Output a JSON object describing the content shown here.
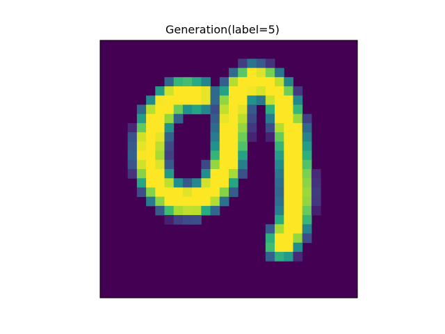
{
  "chart_data": {
    "type": "heatmap",
    "title": "Generation(label=5)",
    "colormap": "viridis",
    "grid": false,
    "axes_visible": false,
    "value_range": [
      0,
      1
    ],
    "rows": 28,
    "cols": 28,
    "strokes": [
      {
        "name": "left-bowl",
        "points": [
          [
            10.7,
            6.0
          ],
          [
            9.0,
            5.8
          ],
          [
            7.6,
            6.6
          ],
          [
            6.2,
            8.3
          ],
          [
            5.5,
            10.5
          ],
          [
            5.4,
            12.8
          ],
          [
            5.7,
            14.6
          ],
          [
            6.7,
            16.2
          ],
          [
            8.3,
            17.4
          ],
          [
            10.2,
            17.5
          ],
          [
            11.7,
            16.8
          ],
          [
            12.9,
            15.4
          ],
          [
            13.7,
            13.6
          ],
          [
            14.2,
            11.3
          ],
          [
            14.4,
            9.0
          ],
          [
            14.6,
            6.8
          ],
          [
            15.3,
            5.2
          ],
          [
            16.6,
            4.3
          ],
          [
            18.0,
            4.6
          ],
          [
            19.2,
            5.6
          ],
          [
            20.0,
            7.3
          ],
          [
            20.6,
            9.5
          ],
          [
            21.0,
            12.0
          ],
          [
            21.3,
            14.5
          ],
          [
            21.4,
            17.0
          ],
          [
            21.2,
            19.0
          ],
          [
            20.6,
            20.8
          ],
          [
            19.8,
            22.1
          ]
        ]
      }
    ]
  }
}
